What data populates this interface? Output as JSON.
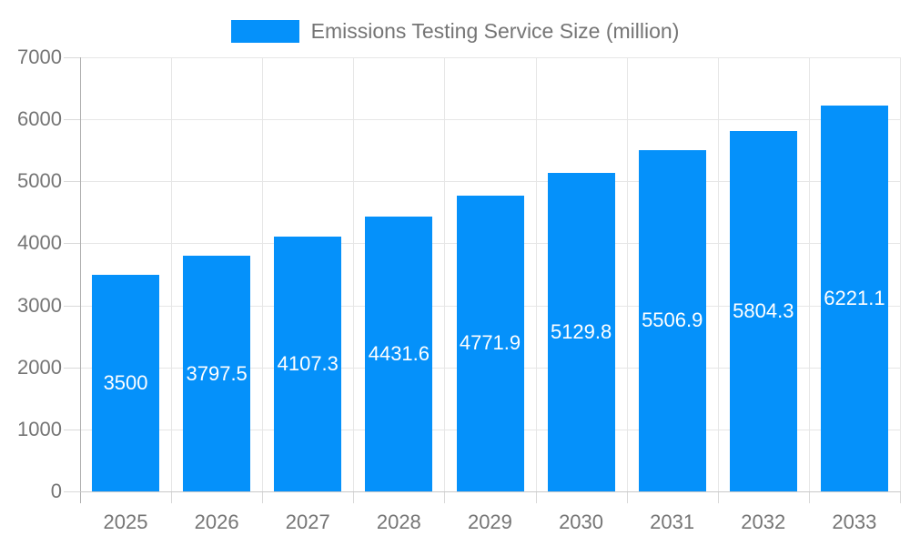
{
  "legend": {
    "label": "Emissions Testing Service Size (million)"
  },
  "chart_data": {
    "type": "bar",
    "title": "Emissions Testing Service Size (million)",
    "categories": [
      "2025",
      "2026",
      "2027",
      "2028",
      "2029",
      "2030",
      "2031",
      "2032",
      "2033"
    ],
    "values": [
      3500,
      3797.5,
      4107.3,
      4431.6,
      4771.9,
      5129.8,
      5506.9,
      5804.3,
      6221.1
    ],
    "value_labels": [
      "3500",
      "3797.5",
      "4107.3",
      "4431.6",
      "4771.9",
      "5129.8",
      "5506.9",
      "5804.3",
      "6221.1"
    ],
    "xlabel": "",
    "ylabel": "",
    "ylim": [
      0,
      7000
    ],
    "yticks": [
      0,
      1000,
      2000,
      3000,
      4000,
      5000,
      6000,
      7000
    ],
    "grid": true,
    "legend_position": "top-center",
    "bar_label_position": "inside-center",
    "colors": {
      "bar": "#0591FA",
      "bar_label": "#FFFFFF",
      "grid": "#E6E6E6",
      "tick": "#D9D9D9",
      "axis_line": "#B0B0B0",
      "baseline": "#C9C9C9",
      "text": "#757575",
      "background": "#FFFFFF"
    }
  }
}
